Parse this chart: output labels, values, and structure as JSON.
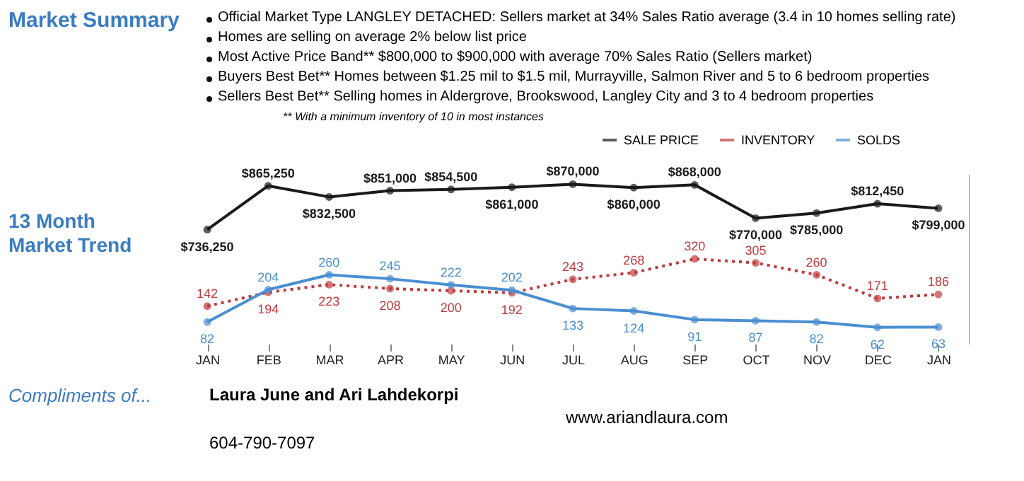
{
  "chart_data": {
    "type": "line",
    "title": "Market Summary",
    "subtitle": "13 Month Market Trend",
    "annotations": [
      "Official Market Type LANGLEY DETACHED: Sellers market at 34% Sales Ratio average (3.4 in 10 homes selling rate)",
      "Homes are selling on average 2% below list price",
      "Most Active Price Band** $800,000 to $900,000 with average 70% Sales Ratio (Sellers market)",
      "Buyers Best Bet** Homes between $1.25 mil to $1.5 mil, Murrayville, Salmon River and 5 to 6 bedroom properties",
      "Sellers Best Bet** Selling homes in Aldergrove, Brookswood, Langley City and 3 to 4 bedroom properties",
      "** With a minimum inventory of 10 in most instances",
      "Compliments of...",
      "Laura June and Ari Lahdekorpi",
      "604-790-7097",
      "www.ariandlaura.com"
    ],
    "categories": [
      "JAN",
      "FEB",
      "MAR",
      "APR",
      "MAY",
      "JUN",
      "JUL",
      "AUG",
      "SEP",
      "OCT",
      "NOV",
      "DEC",
      "JAN"
    ],
    "series": [
      {
        "name": "SALE PRICE",
        "color": "#1a1a1a",
        "axis": "y2",
        "values": [
          736250,
          865250,
          832500,
          851000,
          854500,
          861000,
          870000,
          860000,
          868000,
          770000,
          785000,
          812450,
          799000
        ],
        "value_labels": [
          "$736,250",
          "$865,250",
          "$832,500",
          "$851,000",
          "$854,500",
          "$861,000",
          "$870,000",
          "$860,000",
          "$868,000",
          "$770,000",
          "$785,000",
          "$812,450",
          "$799,000"
        ]
      },
      {
        "name": "INVENTORY",
        "color": "#c0393b",
        "line_style": "dotted",
        "values": [
          142,
          194,
          223,
          208,
          200,
          192,
          243,
          268,
          320,
          305,
          260,
          171,
          186
        ]
      },
      {
        "name": "SOLDS",
        "color": "#4a8fd1",
        "values": [
          82,
          204,
          260,
          245,
          222,
          202,
          133,
          124,
          91,
          87,
          82,
          62,
          63
        ]
      }
    ],
    "ylim": [
      0,
      640
    ],
    "y2lim": [
      400000,
      900000
    ],
    "data_labels": true,
    "marker": "circle",
    "legend": "top right",
    "grid": false,
    "tick_labels": "x"
  }
}
